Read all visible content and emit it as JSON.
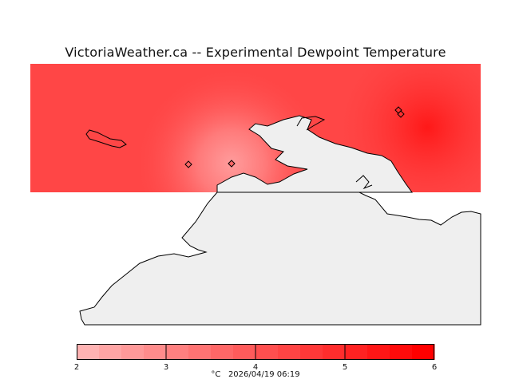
{
  "title": "VictoriaWeather.ca -- Experimental Dewpoint Temperature",
  "map": {
    "field": "dewpoint temperature",
    "field_color_low": "#ffb0b0",
    "field_color_high": "#ff1414",
    "land_color": "#efefef",
    "coastline_color": "#000000",
    "station_marker": "diamond-icon"
  },
  "legend": {
    "ticks": [
      "2",
      "3",
      "4",
      "5",
      "6"
    ],
    "unit": "°C",
    "timestamp": "2026/04/19 06:19",
    "colors": [
      "#ffb3b3",
      "#ffa5a5",
      "#ff9999",
      "#ff8c8c",
      "#ff8080",
      "#ff7373",
      "#ff6767",
      "#ff5b5b",
      "#ff4f4f",
      "#ff4444",
      "#ff3838",
      "#ff2d2d",
      "#ff2222",
      "#ff1616",
      "#ff0b0b",
      "#ff0000"
    ]
  }
}
